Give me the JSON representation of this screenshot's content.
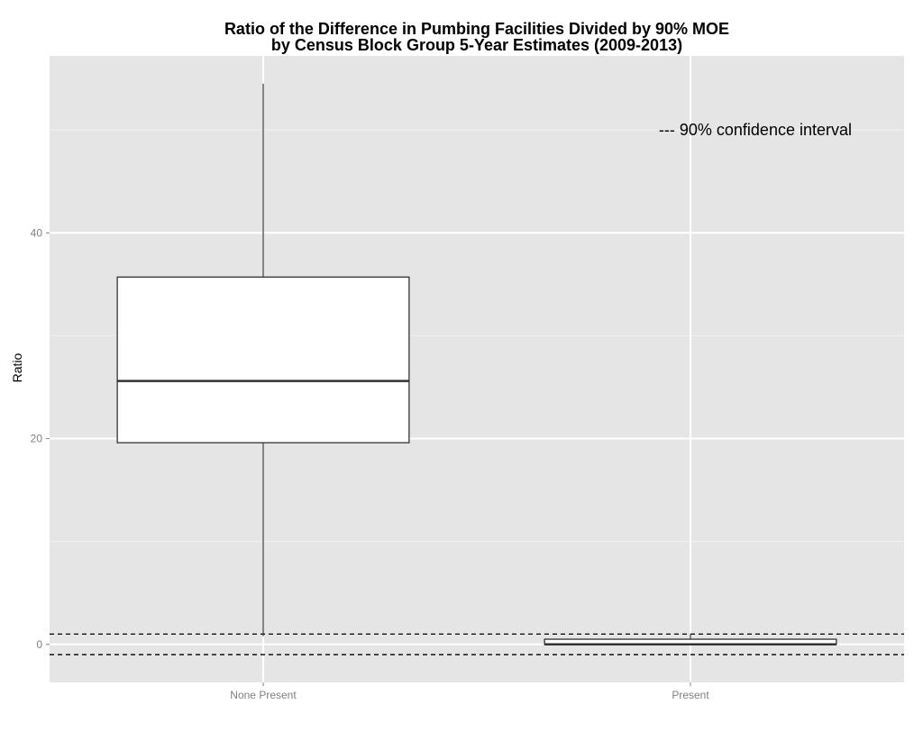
{
  "chart_data": {
    "type": "box",
    "title": "Ratio of the Difference in Pumbing Facilities Divided by 90% MOE",
    "subtitle": "by Census Block Group 5-Year Estimates (2009-2013)",
    "xlabel": "",
    "ylabel": "Ratio",
    "categories": [
      "None Present",
      "Present"
    ],
    "boxes": [
      {
        "category": "None Present",
        "min": 0.8,
        "q1": 19.6,
        "median": 25.6,
        "q3": 35.7,
        "max": 54.5
      },
      {
        "category": "Present",
        "min": 0.0,
        "q1": 0.0,
        "median": 0.0,
        "q3": 0.5,
        "max": 1.0
      }
    ],
    "reference_lines": [
      {
        "y": 1.0,
        "style": "dashed"
      },
      {
        "y": -1.0,
        "style": "dashed"
      }
    ],
    "annotation": "--- 90% confidence interval",
    "ylim": [
      -3.7,
      57.2
    ],
    "y_ticks": [
      0,
      20,
      40
    ],
    "y_tick_labels": [
      "0",
      "20",
      "40"
    ],
    "grid": true,
    "legend": "none",
    "colors": {
      "panel": "#e5e5e5",
      "grid_major": "#ffffff",
      "grid_minor": "#f2f2f2",
      "box_fill": "#ffffff",
      "box_stroke": "#333333"
    }
  }
}
